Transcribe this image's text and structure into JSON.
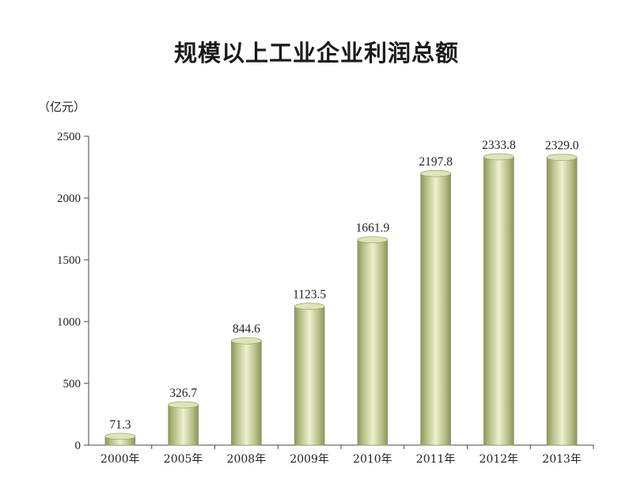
{
  "chart_data": {
    "type": "bar",
    "title": "规模以上工业企业利润总额",
    "ylabel": "（亿元）",
    "categories": [
      "2000年",
      "2005年",
      "2008年",
      "2009年",
      "2010年",
      "2011年",
      "2012年",
      "2013年"
    ],
    "values": [
      71.3,
      326.7,
      844.6,
      1123.5,
      1661.9,
      2197.8,
      2333.8,
      2329.0
    ],
    "value_labels": [
      "71.3",
      "326.7",
      "844.6",
      "1123.5",
      "1661.9",
      "2197.8",
      "2333.8",
      "2329.0"
    ],
    "yticks": [
      "0",
      "500",
      "1000",
      "1500",
      "2000",
      "2500"
    ],
    "ylim": [
      0,
      2500
    ],
    "grid": false,
    "bar_color": "#c2c88e",
    "bar_edge_color": "#8d9660"
  }
}
